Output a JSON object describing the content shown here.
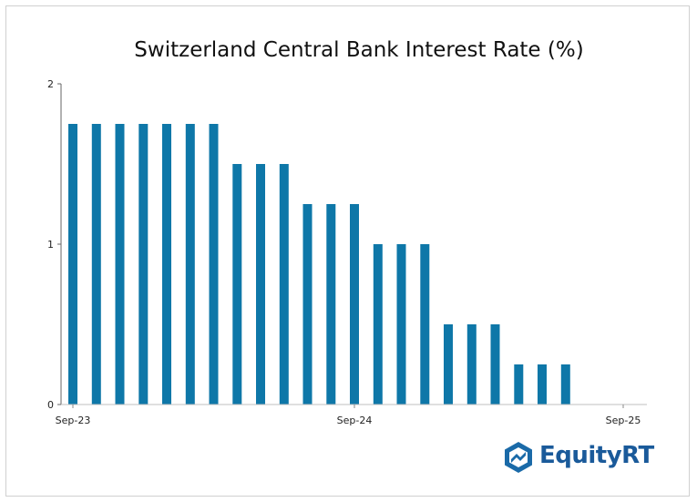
{
  "chart_data": {
    "type": "bar",
    "title": "Switzerland Central Bank Interest Rate (%)",
    "xlabel": "",
    "ylabel": "",
    "x_tick_labels": [
      "Sep-23",
      "Sep-24",
      "Sep-25"
    ],
    "y_tick_labels": [
      "0",
      "1",
      "2"
    ],
    "ylim": [
      0,
      2
    ],
    "bar_color": "#0e77a8",
    "grid": false,
    "categories": [
      "Sep-23",
      "Oct-23",
      "Nov-23",
      "Dec-23",
      "Jan-24",
      "Feb-24",
      "Mar-24",
      "Apr-24",
      "May-24",
      "Jun-24",
      "Jul-24",
      "Aug-24",
      "Sep-24",
      "Oct-24",
      "Nov-24",
      "Dec-24",
      "Jan-25",
      "Feb-25",
      "Mar-25",
      "Apr-25",
      "May-25",
      "Jun-25",
      "Jul-25",
      "Aug-25",
      "Sep-25"
    ],
    "values": [
      1.75,
      1.75,
      1.75,
      1.75,
      1.75,
      1.75,
      1.75,
      1.5,
      1.5,
      1.5,
      1.25,
      1.25,
      1.25,
      1.0,
      1.0,
      1.0,
      0.5,
      0.5,
      0.5,
      0.25,
      0.25,
      0.25,
      null,
      null,
      null
    ]
  },
  "logo": {
    "text": "EquityRT",
    "icon": "equityrt-logo-icon"
  }
}
